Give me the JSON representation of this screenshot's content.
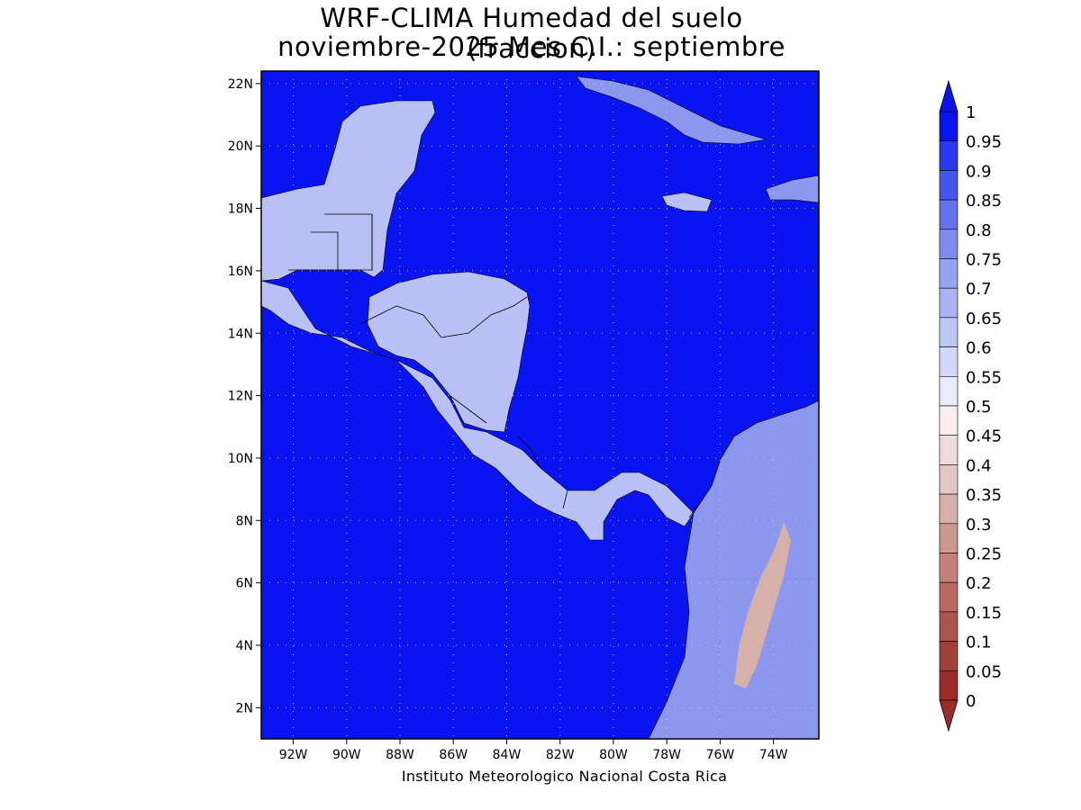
{
  "title": {
    "line1": "WRF-CLIMA Humedad del suelo (fraccion)",
    "line2": "noviembre-2025 Mes C.I.: septiembre"
  },
  "credit": "Instituto Meteorologico Nacional Costa Rica",
  "axes": {
    "lon_ticks": [
      "92W",
      "90W",
      "88W",
      "86W",
      "84W",
      "82W",
      "80W",
      "78W",
      "76W",
      "74W"
    ],
    "lat_ticks": [
      "2N",
      "4N",
      "6N",
      "8N",
      "10N",
      "12N",
      "14N",
      "16N",
      "18N",
      "20N",
      "22N"
    ],
    "lon_range": [
      -93.2,
      -72.3
    ],
    "lat_range": [
      1.0,
      22.4
    ],
    "grid": true
  },
  "colorbar": {
    "levels": [
      "1",
      "0.95",
      "0.9",
      "0.85",
      "0.8",
      "0.75",
      "0.7",
      "0.65",
      "0.6",
      "0.55",
      "0.5",
      "0.45",
      "0.4",
      "0.35",
      "0.3",
      "0.25",
      "0.2",
      "0.15",
      "0.1",
      "0.05",
      "0"
    ],
    "colors": [
      "#0a14f0",
      "#2a38f2",
      "#4656f0",
      "#6472ee",
      "#7e8cf0",
      "#96a2f2",
      "#aab4f4",
      "#bec6f6",
      "#d2d8f8",
      "#e8ecfb",
      "#f8f0ee",
      "#ecdcda",
      "#e2c6c2",
      "#d8b0aa",
      "#cc9890",
      "#c28078",
      "#b86a62",
      "#ae544e",
      "#a4403a",
      "#9a2c28"
    ],
    "top_arrow_color": "#0a14f0",
    "bottom_arrow_color": "#9a2c28"
  },
  "colors": {
    "ocean": "#0a14f0",
    "land_wet": "#8c98ee",
    "land_mid": "#b8c0f4",
    "land_dry": "#d8b0aa"
  }
}
